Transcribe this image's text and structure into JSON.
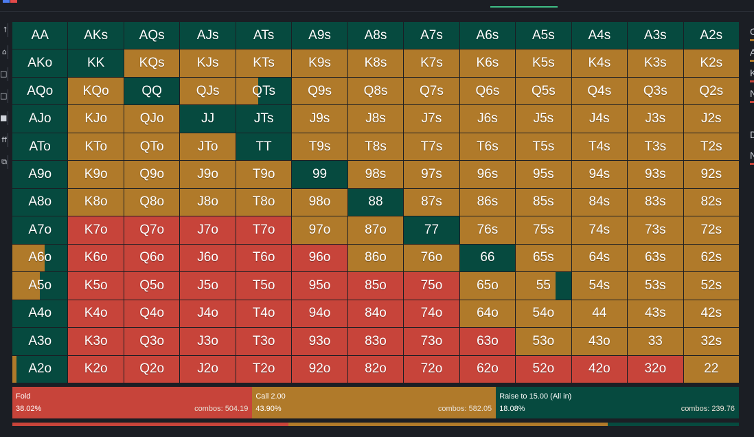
{
  "colors": {
    "fold": "#c7443a",
    "call": "#b07a2a",
    "raise": "#064a3f",
    "background": "#1b1e24"
  },
  "left_tools": [
    {
      "name": "tool-link-icon",
      "glyph": "⭡"
    },
    {
      "name": "tool-lock-icon",
      "glyph": "⌂"
    },
    {
      "name": "tool-grid-icon",
      "glyph": "□"
    },
    {
      "name": "tool-chart-icon",
      "glyph": "□"
    },
    {
      "name": "tool-save-icon",
      "glyph": "■"
    },
    {
      "name": "tool-diff-icon",
      "glyph": "ff"
    },
    {
      "name": "tool-copy-icon",
      "glyph": "⧉"
    }
  ],
  "hands": [
    [
      {
        "h": "AA",
        "c": "r"
      },
      {
        "h": "AKs",
        "c": "r"
      },
      {
        "h": "AQs",
        "c": "r"
      },
      {
        "h": "AJs",
        "c": "r"
      },
      {
        "h": "ATs",
        "c": "r"
      },
      {
        "h": "A9s",
        "c": "r"
      },
      {
        "h": "A8s",
        "c": "r"
      },
      {
        "h": "A7s",
        "c": "r"
      },
      {
        "h": "A6s",
        "c": "r"
      },
      {
        "h": "A5s",
        "c": "r"
      },
      {
        "h": "A4s",
        "c": "r"
      },
      {
        "h": "A3s",
        "c": "r"
      },
      {
        "h": "A2s",
        "c": "r"
      }
    ],
    [
      {
        "h": "AKo",
        "c": "r"
      },
      {
        "h": "KK",
        "c": "r"
      },
      {
        "h": "KQs",
        "c": "c"
      },
      {
        "h": "KJs",
        "c": "c"
      },
      {
        "h": "KTs",
        "c": "c"
      },
      {
        "h": "K9s",
        "c": "c"
      },
      {
        "h": "K8s",
        "c": "c"
      },
      {
        "h": "K7s",
        "c": "c"
      },
      {
        "h": "K6s",
        "c": "c"
      },
      {
        "h": "K5s",
        "c": "c"
      },
      {
        "h": "K4s",
        "c": "c"
      },
      {
        "h": "K3s",
        "c": "c"
      },
      {
        "h": "K2s",
        "c": "c"
      }
    ],
    [
      {
        "h": "AQo",
        "c": "r"
      },
      {
        "h": "KQo",
        "c": "c"
      },
      {
        "h": "QQ",
        "c": "r"
      },
      {
        "h": "QJs",
        "c": "c"
      },
      {
        "h": "QTs",
        "c": "c",
        "mix": [
          0,
          0.4,
          0.6
        ]
      },
      {
        "h": "Q9s",
        "c": "c"
      },
      {
        "h": "Q8s",
        "c": "c"
      },
      {
        "h": "Q7s",
        "c": "c"
      },
      {
        "h": "Q6s",
        "c": "c"
      },
      {
        "h": "Q5s",
        "c": "c"
      },
      {
        "h": "Q4s",
        "c": "c"
      },
      {
        "h": "Q3s",
        "c": "c"
      },
      {
        "h": "Q2s",
        "c": "c"
      }
    ],
    [
      {
        "h": "AJo",
        "c": "r"
      },
      {
        "h": "KJo",
        "c": "c"
      },
      {
        "h": "QJo",
        "c": "c"
      },
      {
        "h": "JJ",
        "c": "r"
      },
      {
        "h": "JTs",
        "c": "r"
      },
      {
        "h": "J9s",
        "c": "c"
      },
      {
        "h": "J8s",
        "c": "c"
      },
      {
        "h": "J7s",
        "c": "c"
      },
      {
        "h": "J6s",
        "c": "c"
      },
      {
        "h": "J5s",
        "c": "c"
      },
      {
        "h": "J4s",
        "c": "c"
      },
      {
        "h": "J3s",
        "c": "c"
      },
      {
        "h": "J2s",
        "c": "c"
      }
    ],
    [
      {
        "h": "ATo",
        "c": "r"
      },
      {
        "h": "KTo",
        "c": "c"
      },
      {
        "h": "QTo",
        "c": "c"
      },
      {
        "h": "JTo",
        "c": "c"
      },
      {
        "h": "TT",
        "c": "r"
      },
      {
        "h": "T9s",
        "c": "c"
      },
      {
        "h": "T8s",
        "c": "c"
      },
      {
        "h": "T7s",
        "c": "c"
      },
      {
        "h": "T6s",
        "c": "c"
      },
      {
        "h": "T5s",
        "c": "c"
      },
      {
        "h": "T4s",
        "c": "c"
      },
      {
        "h": "T3s",
        "c": "c"
      },
      {
        "h": "T2s",
        "c": "c"
      }
    ],
    [
      {
        "h": "A9o",
        "c": "r"
      },
      {
        "h": "K9o",
        "c": "c"
      },
      {
        "h": "Q9o",
        "c": "c"
      },
      {
        "h": "J9o",
        "c": "c"
      },
      {
        "h": "T9o",
        "c": "c"
      },
      {
        "h": "99",
        "c": "r"
      },
      {
        "h": "98s",
        "c": "c"
      },
      {
        "h": "97s",
        "c": "c"
      },
      {
        "h": "96s",
        "c": "c"
      },
      {
        "h": "95s",
        "c": "c"
      },
      {
        "h": "94s",
        "c": "c"
      },
      {
        "h": "93s",
        "c": "c"
      },
      {
        "h": "92s",
        "c": "c"
      }
    ],
    [
      {
        "h": "A8o",
        "c": "r"
      },
      {
        "h": "K8o",
        "c": "c"
      },
      {
        "h": "Q8o",
        "c": "c"
      },
      {
        "h": "J8o",
        "c": "c"
      },
      {
        "h": "T8o",
        "c": "c"
      },
      {
        "h": "98o",
        "c": "c"
      },
      {
        "h": "88",
        "c": "r"
      },
      {
        "h": "87s",
        "c": "c"
      },
      {
        "h": "86s",
        "c": "c"
      },
      {
        "h": "85s",
        "c": "c"
      },
      {
        "h": "84s",
        "c": "c"
      },
      {
        "h": "83s",
        "c": "c"
      },
      {
        "h": "82s",
        "c": "c"
      }
    ],
    [
      {
        "h": "A7o",
        "c": "r"
      },
      {
        "h": "K7o",
        "c": "f"
      },
      {
        "h": "Q7o",
        "c": "f"
      },
      {
        "h": "J7o",
        "c": "f"
      },
      {
        "h": "T7o",
        "c": "f"
      },
      {
        "h": "97o",
        "c": "c"
      },
      {
        "h": "87o",
        "c": "c"
      },
      {
        "h": "77",
        "c": "r"
      },
      {
        "h": "76s",
        "c": "c"
      },
      {
        "h": "75s",
        "c": "c"
      },
      {
        "h": "74s",
        "c": "c"
      },
      {
        "h": "73s",
        "c": "c"
      },
      {
        "h": "72s",
        "c": "c"
      }
    ],
    [
      {
        "h": "A6o",
        "c": "r",
        "mix": [
          0,
          0.58,
          0.42
        ]
      },
      {
        "h": "K6o",
        "c": "f"
      },
      {
        "h": "Q6o",
        "c": "f"
      },
      {
        "h": "J6o",
        "c": "f"
      },
      {
        "h": "T6o",
        "c": "f"
      },
      {
        "h": "96o",
        "c": "f"
      },
      {
        "h": "86o",
        "c": "c"
      },
      {
        "h": "76o",
        "c": "c"
      },
      {
        "h": "66",
        "c": "r"
      },
      {
        "h": "65s",
        "c": "c"
      },
      {
        "h": "64s",
        "c": "c"
      },
      {
        "h": "63s",
        "c": "c"
      },
      {
        "h": "62s",
        "c": "c"
      }
    ],
    [
      {
        "h": "A5o",
        "c": "r",
        "mix": [
          0,
          0.5,
          0.5
        ]
      },
      {
        "h": "K5o",
        "c": "f"
      },
      {
        "h": "Q5o",
        "c": "f"
      },
      {
        "h": "J5o",
        "c": "f"
      },
      {
        "h": "T5o",
        "c": "f"
      },
      {
        "h": "95o",
        "c": "f"
      },
      {
        "h": "85o",
        "c": "f"
      },
      {
        "h": "75o",
        "c": "f"
      },
      {
        "h": "65o",
        "c": "c"
      },
      {
        "h": "55",
        "c": "c",
        "mix": [
          0,
          0.72,
          0.28
        ]
      },
      {
        "h": "54s",
        "c": "c"
      },
      {
        "h": "53s",
        "c": "c"
      },
      {
        "h": "52s",
        "c": "c"
      }
    ],
    [
      {
        "h": "A4o",
        "c": "r"
      },
      {
        "h": "K4o",
        "c": "f"
      },
      {
        "h": "Q4o",
        "c": "f"
      },
      {
        "h": "J4o",
        "c": "f"
      },
      {
        "h": "T4o",
        "c": "f"
      },
      {
        "h": "94o",
        "c": "f"
      },
      {
        "h": "84o",
        "c": "f"
      },
      {
        "h": "74o",
        "c": "f"
      },
      {
        "h": "64o",
        "c": "c"
      },
      {
        "h": "54o",
        "c": "c"
      },
      {
        "h": "44",
        "c": "c"
      },
      {
        "h": "43s",
        "c": "c"
      },
      {
        "h": "42s",
        "c": "c"
      }
    ],
    [
      {
        "h": "A3o",
        "c": "r"
      },
      {
        "h": "K3o",
        "c": "f"
      },
      {
        "h": "Q3o",
        "c": "f"
      },
      {
        "h": "J3o",
        "c": "f"
      },
      {
        "h": "T3o",
        "c": "f"
      },
      {
        "h": "93o",
        "c": "f"
      },
      {
        "h": "83o",
        "c": "f"
      },
      {
        "h": "73o",
        "c": "f"
      },
      {
        "h": "63o",
        "c": "f"
      },
      {
        "h": "53o",
        "c": "c"
      },
      {
        "h": "43o",
        "c": "c"
      },
      {
        "h": "33",
        "c": "c"
      },
      {
        "h": "32s",
        "c": "c"
      }
    ],
    [
      {
        "h": "A2o",
        "c": "r",
        "mix": [
          0,
          0.08,
          0.92
        ]
      },
      {
        "h": "K2o",
        "c": "f"
      },
      {
        "h": "Q2o",
        "c": "f"
      },
      {
        "h": "J2o",
        "c": "f"
      },
      {
        "h": "T2o",
        "c": "f"
      },
      {
        "h": "92o",
        "c": "f"
      },
      {
        "h": "82o",
        "c": "f"
      },
      {
        "h": "72o",
        "c": "f"
      },
      {
        "h": "62o",
        "c": "f"
      },
      {
        "h": "52o",
        "c": "f"
      },
      {
        "h": "42o",
        "c": "f"
      },
      {
        "h": "32o",
        "c": "f"
      },
      {
        "h": "22",
        "c": "c"
      }
    ]
  ],
  "summary": {
    "fold": {
      "label": "Fold",
      "percent": "38.02%",
      "combos": "combos: 504.19",
      "share": 0.3302
    },
    "call": {
      "label": "Call 2.00",
      "percent": "43.90%",
      "combos": "combos: 582.05",
      "share": 0.3354
    },
    "raise": {
      "label": "Raise to 15.00 (All in)",
      "percent": "18.08%",
      "combos": "combos: 239.76",
      "share": 0.3344
    }
  },
  "progress": {
    "fold": 0.3802,
    "call": 0.439,
    "raise": 0.1808
  },
  "right_partial": [
    {
      "letter": "C",
      "bar": "#b07a2a"
    },
    {
      "letter": "A",
      "bar": "#b07a2a"
    },
    {
      "letter": "K",
      "bar": "#c7443a"
    },
    {
      "letter": "N",
      "bar": "#c7443a"
    },
    {
      "letter": "",
      "bar": ""
    },
    {
      "letter": "D",
      "bar": ""
    },
    {
      "letter": "N",
      "bar": "#c7443a"
    }
  ]
}
